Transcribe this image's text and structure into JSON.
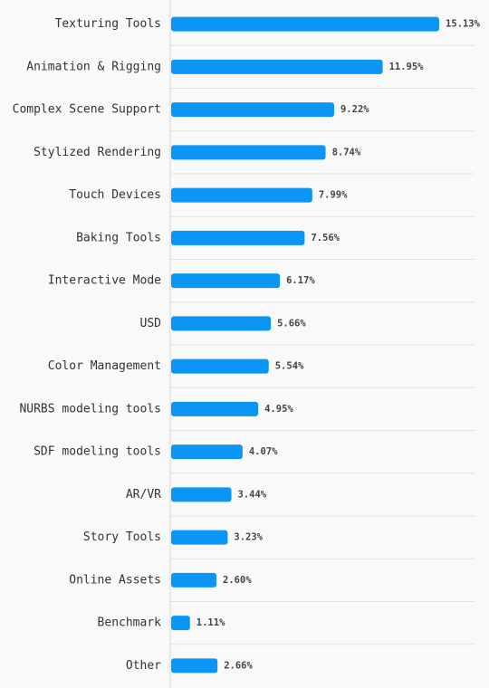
{
  "chart_data": {
    "type": "bar",
    "orientation": "horizontal",
    "categories": [
      "Texturing Tools",
      "Animation & Rigging",
      "Complex Scene Support",
      "Stylized Rendering",
      "Touch Devices",
      "Baking Tools",
      "Interactive Mode",
      "USD",
      "Color Management",
      "NURBS modeling tools",
      "SDF modeling tools",
      "AR/VR",
      "Story Tools",
      "Online Assets",
      "Benchmark",
      "Other"
    ],
    "values": [
      15.13,
      11.95,
      9.22,
      8.74,
      7.99,
      7.56,
      6.17,
      5.66,
      5.54,
      4.95,
      4.07,
      3.44,
      3.23,
      2.6,
      1.11,
      2.66
    ],
    "value_labels": [
      "15.13%",
      "11.95%",
      "9.22%",
      "8.74%",
      "7.99%",
      "7.56%",
      "6.17%",
      "5.66%",
      "5.54%",
      "4.95%",
      "4.07%",
      "3.44%",
      "3.23%",
      "2.60%",
      "1.11%",
      "2.66%"
    ],
    "unit": "%",
    "title": "",
    "xlabel": "",
    "ylabel": "",
    "xlim": [
      0,
      15.13
    ],
    "grid": true,
    "bar_color": "#0b96f5",
    "background": "#f9f9f9"
  }
}
